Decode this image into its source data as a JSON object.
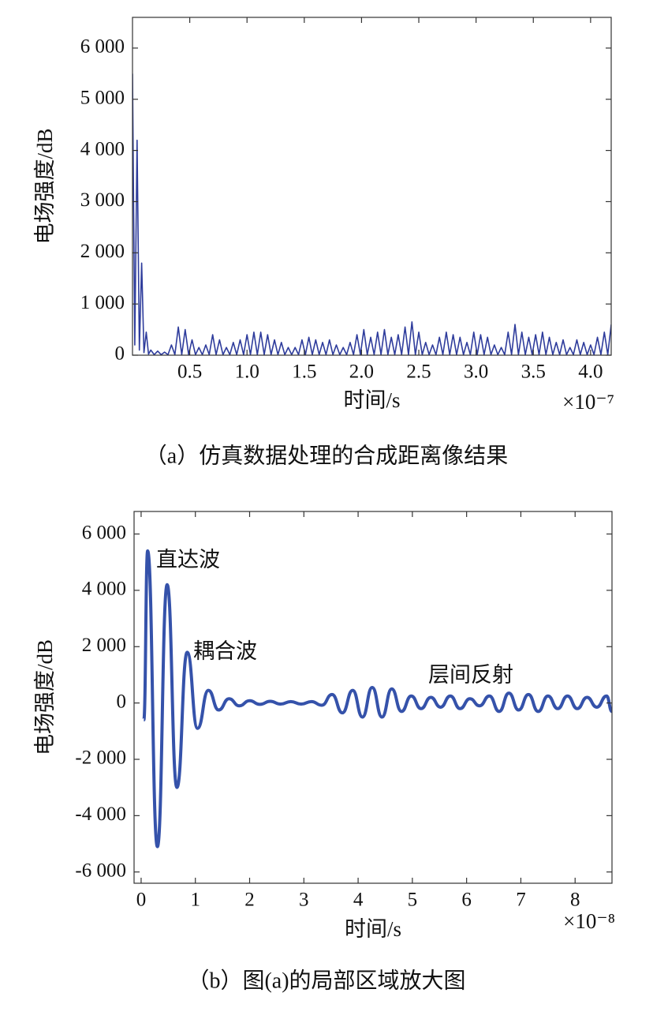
{
  "chart_data": [
    {
      "type": "line",
      "caption": "（a）仿真数据处理的合成距离像结果",
      "x_label": "时间/s",
      "y_label": "电场强度/dB",
      "x_scale_label": "×10⁻⁷",
      "xlim": [
        0,
        4.18
      ],
      "ylim": [
        0,
        6600
      ],
      "xticks": [
        0.5,
        {
          "value": 1,
          "label": "1.0"
        },
        1.5,
        {
          "value": 2,
          "label": "2.0"
        },
        2.5,
        {
          "value": 3,
          "label": "3.0"
        },
        3.5,
        {
          "value": 4,
          "label": "4.0"
        }
      ],
      "yticks": [
        0,
        {
          "value": 1000,
          "label": "1 000"
        },
        {
          "value": 2000,
          "label": "2 000"
        },
        {
          "value": 3000,
          "label": "3 000"
        },
        {
          "value": 4000,
          "label": "4 000"
        },
        {
          "value": 5000,
          "label": "5 000"
        },
        {
          "value": 6000,
          "label": "6 000"
        }
      ],
      "series": [
        {
          "color": "#2e3c9c",
          "x": [
            0,
            0.02,
            0.04,
            0.06,
            0.08,
            0.1,
            0.12,
            0.14,
            0.16,
            0.19,
            0.22,
            0.25,
            0.28,
            0.31,
            0.34,
            0.37,
            0.4,
            0.43,
            0.46,
            0.49,
            0.52,
            0.55,
            0.58,
            0.61,
            0.64,
            0.67,
            0.7,
            0.73,
            0.76,
            0.79,
            0.82,
            0.85,
            0.88,
            0.91,
            0.94,
            0.97,
            1.0,
            1.03,
            1.06,
            1.09,
            1.12,
            1.15,
            1.18,
            1.21,
            1.24,
            1.27,
            1.3,
            1.33,
            1.36,
            1.39,
            1.42,
            1.45,
            1.48,
            1.51,
            1.54,
            1.57,
            1.6,
            1.63,
            1.66,
            1.69,
            1.72,
            1.75,
            1.78,
            1.81,
            1.84,
            1.87,
            1.9,
            1.93,
            1.96,
            1.99,
            2.02,
            2.05,
            2.08,
            2.11,
            2.14,
            2.17,
            2.2,
            2.23,
            2.26,
            2.29,
            2.32,
            2.35,
            2.38,
            2.41,
            2.44,
            2.47,
            2.5,
            2.53,
            2.56,
            2.59,
            2.62,
            2.65,
            2.68,
            2.71,
            2.74,
            2.77,
            2.8,
            2.83,
            2.86,
            2.89,
            2.92,
            2.95,
            2.98,
            3.01,
            3.04,
            3.07,
            3.1,
            3.13,
            3.16,
            3.19,
            3.22,
            3.25,
            3.28,
            3.31,
            3.34,
            3.37,
            3.4,
            3.43,
            3.46,
            3.49,
            3.52,
            3.55,
            3.58,
            3.61,
            3.64,
            3.67,
            3.7,
            3.73,
            3.76,
            3.79,
            3.82,
            3.85,
            3.88,
            3.91,
            3.94,
            3.97,
            4.0,
            4.03,
            4.06,
            4.09,
            4.12,
            4.15,
            4.18
          ],
          "values": [
            5500,
            200,
            4200,
            100,
            1800,
            50,
            450,
            20,
            100,
            10,
            80,
            10,
            60,
            10,
            200,
            10,
            550,
            10,
            500,
            10,
            300,
            10,
            150,
            10,
            200,
            10,
            400,
            10,
            300,
            10,
            150,
            10,
            250,
            10,
            300,
            10,
            400,
            10,
            450,
            10,
            450,
            10,
            400,
            10,
            300,
            10,
            250,
            10,
            150,
            10,
            150,
            10,
            300,
            10,
            350,
            10,
            300,
            10,
            250,
            10,
            300,
            10,
            200,
            10,
            150,
            10,
            250,
            10,
            400,
            10,
            500,
            10,
            350,
            10,
            450,
            10,
            500,
            10,
            350,
            10,
            400,
            10,
            550,
            10,
            650,
            10,
            450,
            10,
            250,
            10,
            200,
            10,
            350,
            10,
            450,
            10,
            400,
            10,
            350,
            10,
            250,
            10,
            450,
            10,
            400,
            10,
            350,
            10,
            200,
            10,
            150,
            10,
            450,
            10,
            600,
            10,
            450,
            10,
            350,
            10,
            400,
            10,
            450,
            10,
            350,
            10,
            250,
            10,
            300,
            10,
            150,
            10,
            300,
            10,
            250,
            10,
            200,
            10,
            350,
            10,
            450,
            10,
            600
          ]
        }
      ]
    },
    {
      "type": "line",
      "caption": "（b）图(a)的局部区域放大图",
      "x_label": "时间/s",
      "y_label": "电场强度/dB",
      "x_scale_label": "×10⁻⁸",
      "xlim": [
        -0.13,
        8.68
      ],
      "ylim": [
        -6400,
        6800
      ],
      "xticks": [
        0,
        1,
        2,
        3,
        4,
        5,
        6,
        7,
        8
      ],
      "yticks": [
        {
          "value": -6000,
          "label": "-6 000"
        },
        {
          "value": -4000,
          "label": "-4 000"
        },
        {
          "value": -2000,
          "label": "-2 000"
        },
        0,
        {
          "value": 2000,
          "label": "2 000"
        },
        {
          "value": 4000,
          "label": "4 000"
        },
        {
          "value": 6000,
          "label": "6 000"
        }
      ],
      "annotations": [
        "直达波",
        "耦合波",
        "层间反射"
      ],
      "series": [
        {
          "color": "#3552aa",
          "x": [
            0.05,
            0.12,
            0.3,
            0.48,
            0.66,
            0.85,
            1.04,
            1.24,
            1.43,
            1.62,
            1.81,
            2.0,
            2.19,
            2.38,
            2.57,
            2.76,
            2.95,
            3.14,
            3.33,
            3.52,
            3.71,
            3.9,
            4.08,
            4.26,
            4.44,
            4.62,
            4.8,
            4.98,
            5.16,
            5.34,
            5.52,
            5.7,
            5.88,
            6.06,
            6.24,
            6.42,
            6.6,
            6.78,
            6.96,
            7.14,
            7.32,
            7.5,
            7.68,
            7.86,
            8.04,
            8.22,
            8.4,
            8.58,
            8.68
          ],
          "values": [
            -600,
            5400,
            -5100,
            4200,
            -3000,
            1800,
            -900,
            450,
            -250,
            150,
            -100,
            80,
            -50,
            60,
            -40,
            50,
            -40,
            50,
            -80,
            300,
            -350,
            450,
            -500,
            550,
            -500,
            500,
            -300,
            250,
            -200,
            200,
            -150,
            250,
            -200,
            150,
            -100,
            250,
            -300,
            350,
            -250,
            300,
            -300,
            250,
            -200,
            250,
            -200,
            200,
            -150,
            250,
            -300
          ]
        }
      ]
    }
  ]
}
